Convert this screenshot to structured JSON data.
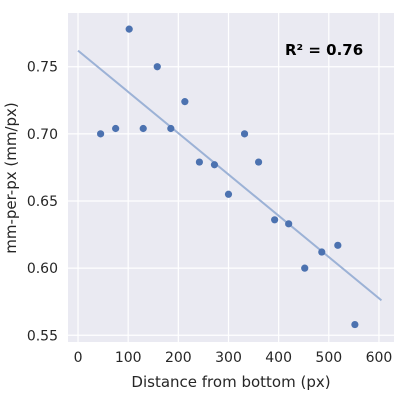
{
  "chart_data": {
    "type": "scatter",
    "xlabel": "Distance from bottom (px)",
    "ylabel": "mm-per-px (mm/px)",
    "xlim": [
      -20,
      630
    ],
    "ylim": [
      0.545,
      0.79
    ],
    "xticks": [
      0,
      100,
      200,
      300,
      400,
      500,
      600
    ],
    "yticks": [
      0.55,
      0.6,
      0.65,
      0.7,
      0.75
    ],
    "grid": true,
    "annotation": "R² = 0.76",
    "points": [
      {
        "x": 45,
        "y": 0.7
      },
      {
        "x": 75,
        "y": 0.704
      },
      {
        "x": 102,
        "y": 0.778
      },
      {
        "x": 130,
        "y": 0.704
      },
      {
        "x": 158,
        "y": 0.75
      },
      {
        "x": 185,
        "y": 0.704
      },
      {
        "x": 213,
        "y": 0.724
      },
      {
        "x": 242,
        "y": 0.679
      },
      {
        "x": 272,
        "y": 0.677
      },
      {
        "x": 300,
        "y": 0.655
      },
      {
        "x": 332,
        "y": 0.7
      },
      {
        "x": 360,
        "y": 0.679
      },
      {
        "x": 392,
        "y": 0.636
      },
      {
        "x": 420,
        "y": 0.633
      },
      {
        "x": 452,
        "y": 0.6
      },
      {
        "x": 486,
        "y": 0.612
      },
      {
        "x": 518,
        "y": 0.617
      },
      {
        "x": 552,
        "y": 0.558
      }
    ],
    "fit_line": {
      "x": [
        0,
        605
      ],
      "y": [
        0.762,
        0.576
      ]
    },
    "colors": {
      "background": "#eaeaf2",
      "grid": "#ffffff",
      "points": "#4c72b0",
      "line": "#9cb2d6"
    }
  }
}
